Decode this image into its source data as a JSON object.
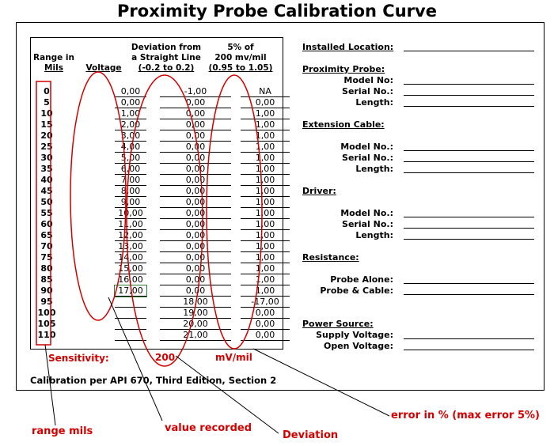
{
  "title": "Proximity Probe Calibration Curve",
  "headers": {
    "range": [
      "Range in",
      "Mils"
    ],
    "voltage": "Voltage",
    "deviation": [
      "Deviation from",
      "a Straight Line",
      "(-0.2 to 0.2)"
    ],
    "error": [
      "5% of",
      "200 mv/mil",
      "(0.95 to 1.05)"
    ]
  },
  "rows": [
    {
      "mils": "0",
      "voltage": "0,00",
      "deviation": "-1,00",
      "error": "NA"
    },
    {
      "mils": "5",
      "voltage": "0,00",
      "deviation": "0,00",
      "error": "0,00"
    },
    {
      "mils": "10",
      "voltage": "1,00",
      "deviation": "0,00",
      "error": "1,00"
    },
    {
      "mils": "15",
      "voltage": "2,00",
      "deviation": "0,00",
      "error": "1,00"
    },
    {
      "mils": "20",
      "voltage": "3,00",
      "deviation": "0,00",
      "error": "1,00"
    },
    {
      "mils": "25",
      "voltage": "4,00",
      "deviation": "0,00",
      "error": "1,00"
    },
    {
      "mils": "30",
      "voltage": "5,00",
      "deviation": "0,00",
      "error": "1,00"
    },
    {
      "mils": "35",
      "voltage": "6,00",
      "deviation": "0,00",
      "error": "1,00"
    },
    {
      "mils": "40",
      "voltage": "7,00",
      "deviation": "0,00",
      "error": "1,00"
    },
    {
      "mils": "45",
      "voltage": "8,00",
      "deviation": "0,00",
      "error": "1,00"
    },
    {
      "mils": "50",
      "voltage": "9,00",
      "deviation": "0,00",
      "error": "1,00"
    },
    {
      "mils": "55",
      "voltage": "10,00",
      "deviation": "0,00",
      "error": "1,00"
    },
    {
      "mils": "60",
      "voltage": "11,00",
      "deviation": "0,00",
      "error": "1,00"
    },
    {
      "mils": "65",
      "voltage": "12,00",
      "deviation": "0,00",
      "error": "1,00"
    },
    {
      "mils": "70",
      "voltage": "13,00",
      "deviation": "0,00",
      "error": "1,00"
    },
    {
      "mils": "75",
      "voltage": "14,00",
      "deviation": "0,00",
      "error": "1,00"
    },
    {
      "mils": "80",
      "voltage": "15,00",
      "deviation": "0,00",
      "error": "1,00"
    },
    {
      "mils": "85",
      "voltage": "16,00",
      "deviation": "0,00",
      "error": "1,00"
    },
    {
      "mils": "90",
      "voltage": "17,00",
      "deviation": "0,00",
      "error": "1,00"
    },
    {
      "mils": "95",
      "voltage": "",
      "deviation": "18,00",
      "error": "-17,00"
    },
    {
      "mils": "100",
      "voltage": "",
      "deviation": "19,00",
      "error": "0,00"
    },
    {
      "mils": "105",
      "voltage": "",
      "deviation": "20,00",
      "error": "0,00"
    },
    {
      "mils": "110",
      "voltage": "",
      "deviation": "21,00",
      "error": "0,00"
    }
  ],
  "footer": {
    "sensitivity_label": "Sensitivity:",
    "sensitivity_value": "200",
    "unit": "mV/mil",
    "calibration_note": "Calibration per API 670, Third Edition, Section 2"
  },
  "right_panel": {
    "installed_location": "Installed Location:",
    "proximity_probe": "Proximity Probe:",
    "probe_model": "Model No:",
    "probe_serial": "Serial No.:",
    "probe_length": "Length:",
    "extension_cable": "Extension Cable:",
    "cable_model": "Model No.:",
    "cable_serial": "Serial No.:",
    "cable_length": "Length:",
    "driver": "Driver:",
    "driver_model": "Model No.:",
    "driver_serial": "Serial No.:",
    "driver_length": "Length:",
    "resistance": "Resistance:",
    "probe_alone": "Probe Alone:",
    "probe_cable": "Probe & Cable:",
    "power_source": "Power Source:",
    "supply_voltage": "Supply Voltage:",
    "open_voltage": "Open Voltage:"
  },
  "annotations": {
    "range_mils": "range mils",
    "value_recorded": "value recorded",
    "deviation": "Deviation",
    "error": "error in % (max error 5%)"
  },
  "colors": {
    "annotation": "#d40000",
    "active_cell": "#2e7d32"
  }
}
